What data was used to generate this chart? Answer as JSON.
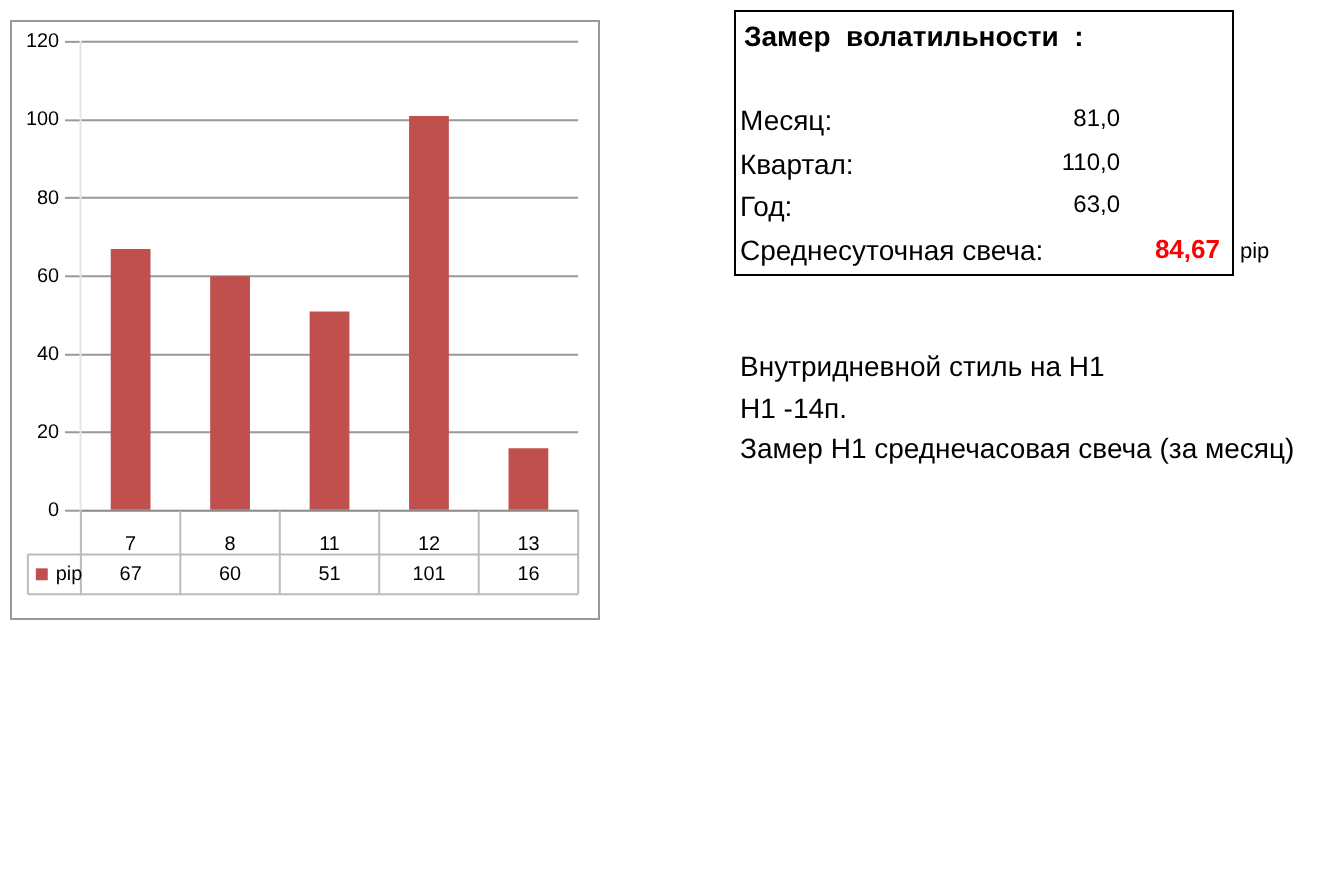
{
  "chart_data": {
    "type": "bar",
    "categories": [
      "7",
      "8",
      "11",
      "12",
      "13"
    ],
    "series": [
      {
        "name": "pip",
        "color": "#c0504d",
        "values": [
          67,
          60,
          51,
          101,
          16
        ]
      }
    ],
    "ylim": [
      0,
      120
    ],
    "yticks": [
      0,
      20,
      40,
      60,
      80,
      100,
      120
    ],
    "grid": "y",
    "legend": "bottom",
    "data_labels": true,
    "annotations": [
      "Замер  волатильности  :",
      "Месяц:",
      "81,0",
      "Квартал:",
      "110,0",
      "Год:",
      "63,0",
      "Среднесуточная свеча:",
      "84,67",
      "pip",
      "Внутридневной стиль на H1",
      "H1 -14п.",
      "Замер H1 среднечасовая свеча (за месяц)"
    ]
  }
}
